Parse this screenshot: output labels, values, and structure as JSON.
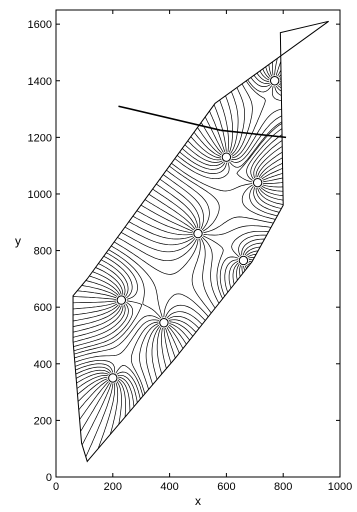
{
  "chart_data": {
    "type": "line",
    "xlabel": "x",
    "ylabel": "y",
    "xlim": [
      0,
      1000
    ],
    "ylim": [
      0,
      1650
    ],
    "grid": false,
    "xticks": [
      0,
      200,
      400,
      600,
      800,
      1000
    ],
    "yticks": [
      0,
      200,
      400,
      600,
      800,
      1000,
      1200,
      1400,
      1600
    ],
    "boundary": [
      [
        110,
        55
      ],
      [
        420,
        420
      ],
      [
        690,
        760
      ],
      [
        800,
        960
      ],
      [
        790,
        1570
      ],
      [
        960,
        1610
      ],
      [
        560,
        1320
      ],
      [
        110,
        700
      ],
      [
        60,
        640
      ],
      [
        60,
        480
      ],
      [
        90,
        120
      ]
    ],
    "internal_walls": [
      [
        [
          220,
          1310
        ],
        [
          580,
          1225
        ]
      ],
      [
        [
          580,
          1225
        ],
        [
          810,
          1200
        ]
      ]
    ],
    "sources": [
      {
        "x": 770,
        "y": 1400
      },
      {
        "x": 600,
        "y": 1130
      },
      {
        "x": 710,
        "y": 1040
      },
      {
        "x": 500,
        "y": 860
      },
      {
        "x": 660,
        "y": 765
      },
      {
        "x": 230,
        "y": 625
      },
      {
        "x": 380,
        "y": 545
      },
      {
        "x": 200,
        "y": 350
      }
    ]
  }
}
